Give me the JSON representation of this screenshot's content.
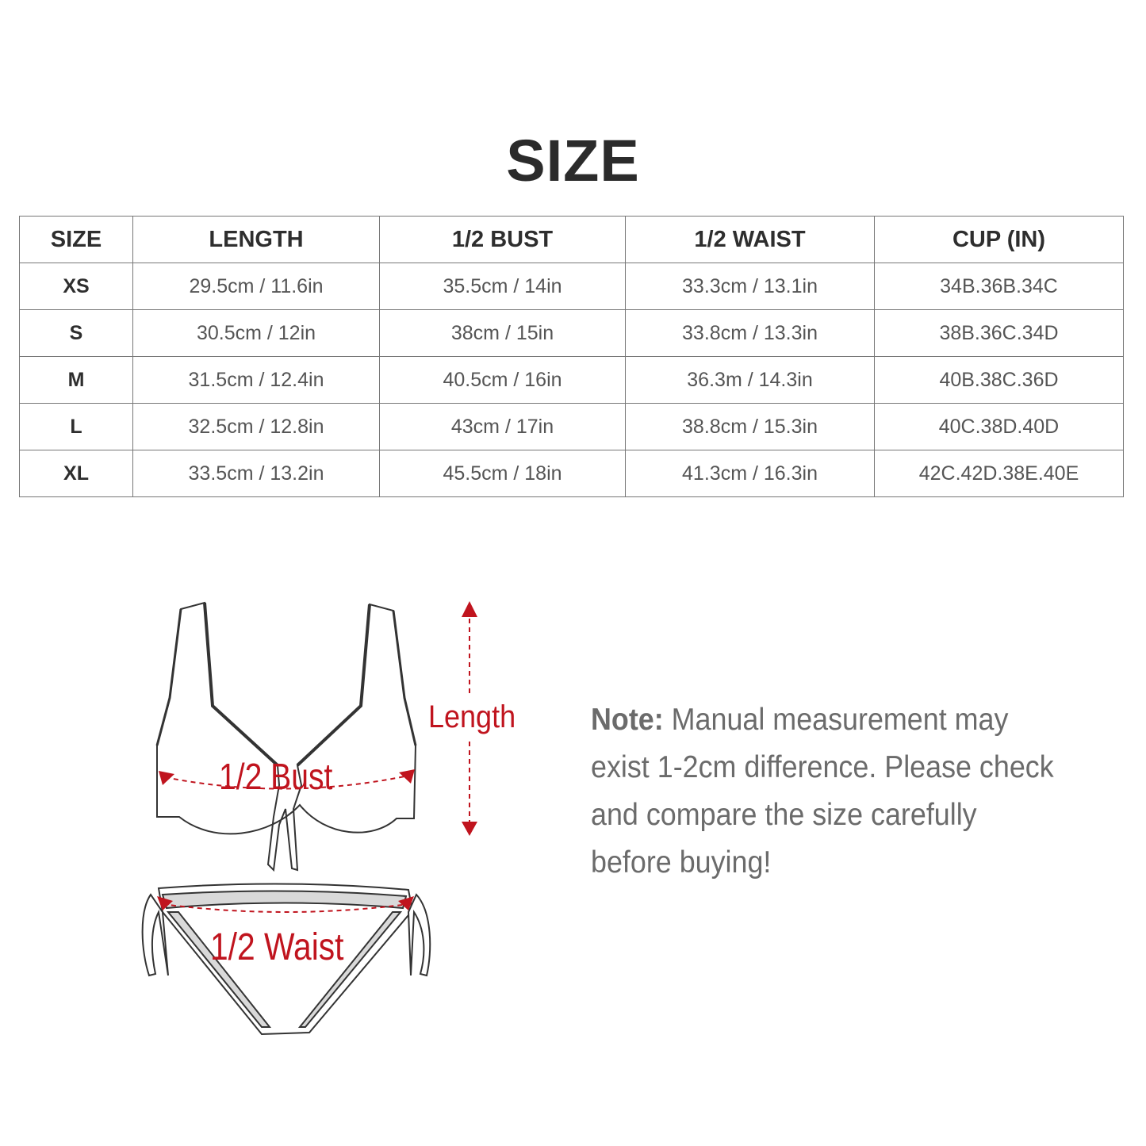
{
  "title": "SIZE",
  "table": {
    "headers": [
      "SIZE",
      "LENGTH",
      "1/2 BUST",
      "1/2 WAIST",
      "CUP (IN)"
    ],
    "rows": [
      [
        "XS",
        "29.5cm / 11.6in",
        "35.5cm / 14in",
        "33.3cm / 13.1in",
        "34B.36B.34C"
      ],
      [
        "S",
        "30.5cm / 12in",
        "38cm / 15in",
        "33.8cm / 13.3in",
        "38B.36C.34D"
      ],
      [
        "M",
        "31.5cm / 12.4in",
        "40.5cm / 16in",
        "36.3m / 14.3in",
        "40B.38C.36D"
      ],
      [
        "L",
        "32.5cm / 12.8in",
        "43cm / 17in",
        "38.8cm / 15.3in",
        "40C.38D.40D"
      ],
      [
        "XL",
        "33.5cm / 13.2in",
        "45.5cm / 18in",
        "41.3cm / 16.3in",
        "42C.42D.38E.40E"
      ]
    ]
  },
  "diagram": {
    "length_label": "Length",
    "bust_label": "1/2 Bust",
    "waist_label": "1/2 Waist",
    "accent_color": "#c0141e"
  },
  "note": {
    "label": "Note:",
    "text": "Manual measurement may exist 1-2cm difference. Please check and compare the size carefully before buying!"
  }
}
